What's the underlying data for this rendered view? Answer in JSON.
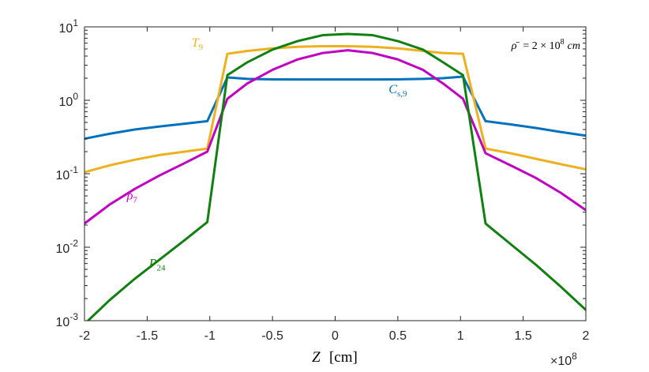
{
  "chart_data": {
    "type": "line",
    "title": "",
    "xlabel": {
      "main": "Z",
      "unit": "[cm]"
    },
    "x_multiplier": {
      "base": "×10",
      "exp": "8"
    },
    "annotation": {
      "lhs": "ρ̄",
      "mid": "= 2 × 10",
      "exp": "8",
      "unit": "cm"
    },
    "xlim": [
      -2,
      2
    ],
    "ylim_log10": [
      -3,
      1
    ],
    "yscale": "log",
    "x_ticks": [
      {
        "value": -2,
        "label": "-2"
      },
      {
        "value": -1.5,
        "label": "-1.5"
      },
      {
        "value": -1,
        "label": "-1"
      },
      {
        "value": -0.5,
        "label": "-0.5"
      },
      {
        "value": 0,
        "label": "0"
      },
      {
        "value": 0.5,
        "label": "0.5"
      },
      {
        "value": 1,
        "label": "1"
      },
      {
        "value": 1.5,
        "label": "1.5"
      },
      {
        "value": 2,
        "label": "2"
      }
    ],
    "y_ticks": [
      {
        "value": 10,
        "base": "10",
        "exp": "1"
      },
      {
        "value": 1,
        "base": "10",
        "exp": "0"
      },
      {
        "value": 0.1,
        "base": "10",
        "exp": "-1"
      },
      {
        "value": 0.01,
        "base": "10",
        "exp": "-2"
      },
      {
        "value": 0.001,
        "base": "10",
        "exp": "-3"
      }
    ],
    "series": [
      {
        "name": "C_s,9",
        "label_main": "C",
        "label_sub": "s,9",
        "label_at": {
          "x": 0.5,
          "y": 1.25
        },
        "color": "#0072bd",
        "x": [
          -2,
          -1.8,
          -1.6,
          -1.4,
          -1.2,
          -1.02,
          -0.86,
          -0.7,
          -0.5,
          -0.3,
          -0.1,
          0.1,
          0.3,
          0.5,
          0.7,
          0.86,
          1.02,
          1.2,
          1.4,
          1.6,
          1.8,
          2
        ],
        "y": [
          0.3,
          0.35,
          0.4,
          0.44,
          0.48,
          0.52,
          2.05,
          1.96,
          1.93,
          1.92,
          1.92,
          1.92,
          1.92,
          1.93,
          1.96,
          2.0,
          2.1,
          0.52,
          0.47,
          0.42,
          0.37,
          0.33
        ]
      },
      {
        "name": "T_9",
        "label_main": "T",
        "label_sub": "9",
        "label_at": {
          "x": -1.1,
          "y": 5.4
        },
        "color": "#edb120",
        "x": [
          -2,
          -1.8,
          -1.6,
          -1.4,
          -1.2,
          -1.02,
          -0.86,
          -0.7,
          -0.5,
          -0.3,
          -0.1,
          0.1,
          0.3,
          0.5,
          0.7,
          0.86,
          1.02,
          1.2,
          1.4,
          1.6,
          1.8,
          2
        ],
        "y": [
          0.105,
          0.13,
          0.155,
          0.18,
          0.2,
          0.22,
          4.3,
          4.7,
          5.1,
          5.35,
          5.45,
          5.45,
          5.35,
          5.1,
          4.7,
          4.4,
          4.3,
          0.22,
          0.19,
          0.16,
          0.135,
          0.115
        ]
      },
      {
        "name": "rho_7",
        "label_main": "ρ",
        "label_sub": "7",
        "label_at": {
          "x": -1.62,
          "y": 0.045
        },
        "color": "#c000c0",
        "x": [
          -2,
          -1.8,
          -1.6,
          -1.4,
          -1.2,
          -1.02,
          -0.86,
          -0.7,
          -0.5,
          -0.3,
          -0.1,
          0.1,
          0.3,
          0.5,
          0.7,
          0.86,
          1.02,
          1.2,
          1.4,
          1.6,
          1.8,
          2
        ],
        "y": [
          0.021,
          0.038,
          0.062,
          0.095,
          0.14,
          0.2,
          1.05,
          1.7,
          2.6,
          3.6,
          4.4,
          4.8,
          4.4,
          3.6,
          2.6,
          1.7,
          1.05,
          0.19,
          0.13,
          0.088,
          0.055,
          0.032
        ]
      },
      {
        "name": "P_24",
        "label_main": "P",
        "label_sub": "24",
        "label_at": {
          "x": -1.42,
          "y": 0.0053
        },
        "color": "#118011",
        "x": [
          -2,
          -1.8,
          -1.6,
          -1.4,
          -1.2,
          -1.02,
          -0.86,
          -0.7,
          -0.5,
          -0.3,
          -0.1,
          0.1,
          0.3,
          0.5,
          0.7,
          0.86,
          1.02,
          1.2,
          1.4,
          1.6,
          1.8,
          2
        ],
        "y": [
          0.0009,
          0.0019,
          0.0037,
          0.0068,
          0.0125,
          0.022,
          2.2,
          3.3,
          4.9,
          6.4,
          7.7,
          8.0,
          7.7,
          6.4,
          4.9,
          3.3,
          2.2,
          0.021,
          0.011,
          0.0058,
          0.0029,
          0.0014
        ]
      }
    ]
  }
}
